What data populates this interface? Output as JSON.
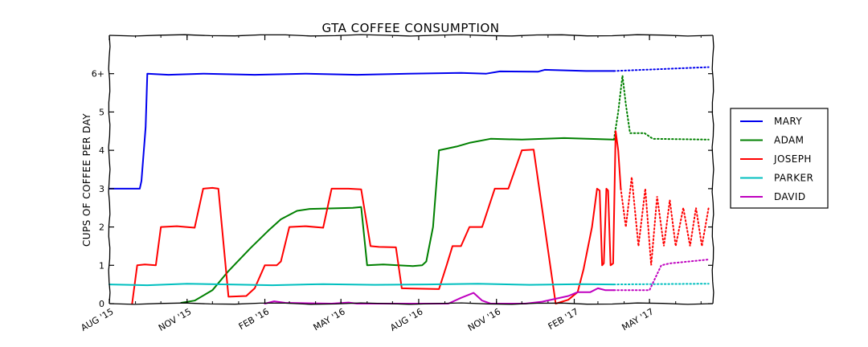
{
  "chart_data": {
    "type": "line",
    "title": "GTA COFFEE CONSUMPTION",
    "xlabel": "",
    "ylabel": "CUPS OF COFFEE PER DAY",
    "x_range": [
      "2015-08-01",
      "2017-07-15"
    ],
    "ylim": [
      0,
      7
    ],
    "y_ticks": [
      0,
      1,
      2,
      3,
      4,
      5,
      6
    ],
    "y_tick_labels": [
      "0",
      "1",
      "2",
      "3",
      "4",
      "5",
      "6+"
    ],
    "x_ticks": [
      "2015-08-01",
      "2015-11-01",
      "2016-02-01",
      "2016-05-01",
      "2016-08-01",
      "2016-11-01",
      "2017-02-01",
      "2017-05-01"
    ],
    "x_tick_labels": [
      "AUG '15",
      "NOV '15",
      "FEB '16",
      "MAY '16",
      "AUG '16",
      "NOV '16",
      "FEB '17",
      "MAY '17"
    ],
    "projection_start": "2017-03-20",
    "grid": false,
    "legend_position": "outside-right",
    "series": [
      {
        "name": "MARY",
        "color": "#0000ee",
        "points": [
          [
            "2015-08-01",
            3.0
          ],
          [
            "2015-09-06",
            3.0
          ],
          [
            "2015-09-08",
            3.2
          ],
          [
            "2015-09-13",
            4.6
          ],
          [
            "2015-09-15",
            6.0
          ],
          [
            "2015-10-10",
            5.97
          ],
          [
            "2015-11-20",
            6.0
          ],
          [
            "2016-01-20",
            5.97
          ],
          [
            "2016-03-20",
            6.0
          ],
          [
            "2016-05-20",
            5.97
          ],
          [
            "2016-07-20",
            6.0
          ],
          [
            "2016-09-20",
            6.02
          ],
          [
            "2016-10-20",
            6.0
          ],
          [
            "2016-11-05",
            6.06
          ],
          [
            "2016-12-20",
            6.05
          ],
          [
            "2016-12-28",
            6.1
          ],
          [
            "2017-02-15",
            6.07
          ],
          [
            "2017-03-20",
            6.07
          ]
        ],
        "projection": [
          [
            "2017-03-20",
            6.07
          ],
          [
            "2017-07-10",
            6.17
          ]
        ]
      },
      {
        "name": "ADAM",
        "color": "#008000",
        "points": [
          [
            "2015-10-25",
            0.02
          ],
          [
            "2015-11-10",
            0.08
          ],
          [
            "2015-12-01",
            0.35
          ],
          [
            "2015-12-20",
            0.85
          ],
          [
            "2016-01-15",
            1.45
          ],
          [
            "2016-02-05",
            1.9
          ],
          [
            "2016-02-20",
            2.2
          ],
          [
            "2016-03-10",
            2.42
          ],
          [
            "2016-03-25",
            2.47
          ],
          [
            "2016-05-15",
            2.5
          ],
          [
            "2016-05-25",
            2.52
          ],
          [
            "2016-06-01",
            1.0
          ],
          [
            "2016-06-20",
            1.02
          ],
          [
            "2016-07-25",
            0.98
          ],
          [
            "2016-08-05",
            1.0
          ],
          [
            "2016-08-10",
            1.1
          ],
          [
            "2016-08-18",
            2.0
          ],
          [
            "2016-08-25",
            4.0
          ],
          [
            "2016-09-15",
            4.1
          ],
          [
            "2016-10-01",
            4.2
          ],
          [
            "2016-10-25",
            4.3
          ],
          [
            "2016-12-01",
            4.28
          ],
          [
            "2017-01-20",
            4.32
          ],
          [
            "2017-03-20",
            4.28
          ]
        ],
        "projection": [
          [
            "2017-03-20",
            4.28
          ],
          [
            "2017-03-25",
            5.0
          ],
          [
            "2017-03-30",
            5.95
          ],
          [
            "2017-04-03",
            5.2
          ],
          [
            "2017-04-08",
            4.45
          ],
          [
            "2017-04-25",
            4.45
          ],
          [
            "2017-05-05",
            4.3
          ],
          [
            "2017-07-10",
            4.28
          ]
        ]
      },
      {
        "name": "JOSEPH",
        "color": "#ff0000",
        "points": [
          [
            "2015-08-28",
            0.0
          ],
          [
            "2015-09-03",
            1.0
          ],
          [
            "2015-09-12",
            1.02
          ],
          [
            "2015-09-25",
            1.0
          ],
          [
            "2015-10-01",
            2.0
          ],
          [
            "2015-10-20",
            2.02
          ],
          [
            "2015-11-10",
            1.98
          ],
          [
            "2015-11-20",
            3.0
          ],
          [
            "2015-12-01",
            3.02
          ],
          [
            "2015-12-08",
            3.0
          ],
          [
            "2015-12-20",
            0.18
          ],
          [
            "2016-01-10",
            0.2
          ],
          [
            "2016-01-20",
            0.4
          ],
          [
            "2016-02-01",
            1.0
          ],
          [
            "2016-02-15",
            1.0
          ],
          [
            "2016-02-20",
            1.1
          ],
          [
            "2016-03-01",
            2.0
          ],
          [
            "2016-03-20",
            2.02
          ],
          [
            "2016-04-10",
            1.98
          ],
          [
            "2016-04-20",
            3.0
          ],
          [
            "2016-05-10",
            3.0
          ],
          [
            "2016-05-25",
            2.98
          ],
          [
            "2016-06-05",
            1.5
          ],
          [
            "2016-06-15",
            1.48
          ],
          [
            "2016-07-05",
            1.47
          ],
          [
            "2016-07-12",
            0.4
          ],
          [
            "2016-08-25",
            0.38
          ],
          [
            "2016-09-03",
            1.0
          ],
          [
            "2016-09-10",
            1.5
          ],
          [
            "2016-09-20",
            1.5
          ],
          [
            "2016-09-30",
            2.0
          ],
          [
            "2016-10-15",
            2.0
          ],
          [
            "2016-10-30",
            3.0
          ],
          [
            "2016-11-15",
            3.0
          ],
          [
            "2016-12-01",
            4.0
          ],
          [
            "2016-12-15",
            4.02
          ],
          [
            "2017-01-10",
            0.0
          ],
          [
            "2017-01-25",
            0.1
          ],
          [
            "2017-02-05",
            0.3
          ],
          [
            "2017-02-12",
            0.9
          ],
          [
            "2017-02-22",
            2.0
          ],
          [
            "2017-02-28",
            3.0
          ],
          [
            "2017-03-03",
            2.95
          ],
          [
            "2017-03-06",
            1.0
          ],
          [
            "2017-03-08",
            1.05
          ],
          [
            "2017-03-11",
            3.0
          ],
          [
            "2017-03-13",
            2.95
          ],
          [
            "2017-03-16",
            1.0
          ],
          [
            "2017-03-19",
            1.05
          ],
          [
            "2017-03-22",
            4.5
          ],
          [
            "2017-03-25",
            4.0
          ],
          [
            "2017-03-28",
            3.0
          ]
        ],
        "projection": [
          [
            "2017-03-28",
            3.0
          ],
          [
            "2017-04-03",
            2.0
          ],
          [
            "2017-04-10",
            3.3
          ],
          [
            "2017-04-18",
            1.5
          ],
          [
            "2017-04-26",
            3.0
          ],
          [
            "2017-05-03",
            1.0
          ],
          [
            "2017-05-10",
            2.8
          ],
          [
            "2017-05-18",
            1.5
          ],
          [
            "2017-05-25",
            2.7
          ],
          [
            "2017-06-01",
            1.5
          ],
          [
            "2017-06-10",
            2.5
          ],
          [
            "2017-06-18",
            1.5
          ],
          [
            "2017-06-25",
            2.5
          ],
          [
            "2017-07-02",
            1.5
          ],
          [
            "2017-07-10",
            2.5
          ]
        ]
      },
      {
        "name": "PARKER",
        "color": "#00bfbf",
        "points": [
          [
            "2015-08-01",
            0.5
          ],
          [
            "2015-09-15",
            0.48
          ],
          [
            "2015-11-01",
            0.52
          ],
          [
            "2015-12-20",
            0.5
          ],
          [
            "2016-02-10",
            0.48
          ],
          [
            "2016-04-10",
            0.51
          ],
          [
            "2016-06-10",
            0.49
          ],
          [
            "2016-08-10",
            0.5
          ],
          [
            "2016-10-10",
            0.52
          ],
          [
            "2016-12-10",
            0.49
          ],
          [
            "2017-02-10",
            0.51
          ],
          [
            "2017-03-20",
            0.5
          ]
        ],
        "projection": [
          [
            "2017-03-20",
            0.5
          ],
          [
            "2017-07-10",
            0.52
          ]
        ]
      },
      {
        "name": "DAVID",
        "color": "#bf00bf",
        "points": [
          [
            "2016-02-01",
            0.0
          ],
          [
            "2016-02-12",
            0.06
          ],
          [
            "2016-02-25",
            0.02
          ],
          [
            "2016-04-20",
            0.0
          ],
          [
            "2016-05-10",
            0.03
          ],
          [
            "2016-05-20",
            0.0
          ],
          [
            "2016-09-05",
            0.0
          ],
          [
            "2016-09-20",
            0.15
          ],
          [
            "2016-10-05",
            0.28
          ],
          [
            "2016-10-15",
            0.08
          ],
          [
            "2016-10-25",
            0.0
          ],
          [
            "2016-12-05",
            0.0
          ],
          [
            "2016-12-25",
            0.05
          ],
          [
            "2017-01-25",
            0.2
          ],
          [
            "2017-02-05",
            0.3
          ],
          [
            "2017-02-20",
            0.3
          ],
          [
            "2017-03-01",
            0.4
          ],
          [
            "2017-03-10",
            0.35
          ],
          [
            "2017-03-20",
            0.35
          ]
        ],
        "projection": [
          [
            "2017-03-20",
            0.35
          ],
          [
            "2017-05-01",
            0.35
          ],
          [
            "2017-05-15",
            1.0
          ],
          [
            "2017-05-25",
            1.05
          ],
          [
            "2017-07-10",
            1.15
          ]
        ]
      }
    ]
  }
}
